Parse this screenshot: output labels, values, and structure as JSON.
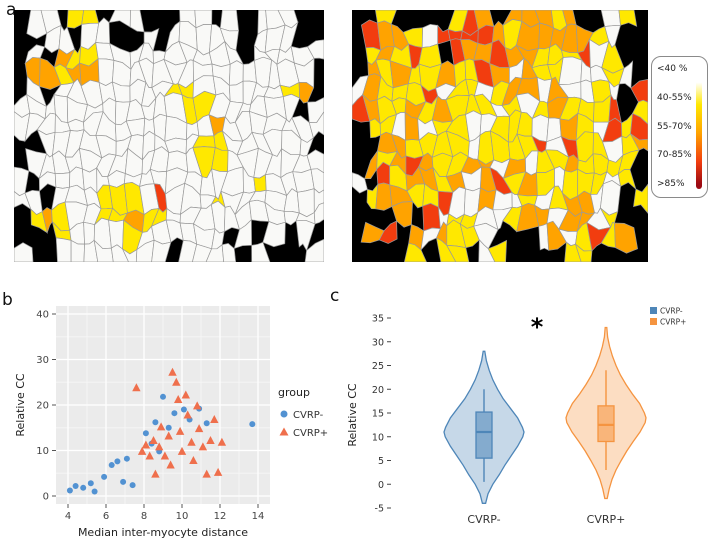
{
  "figure": {
    "panel_labels": {
      "a": "a",
      "b": "b",
      "c": "c"
    }
  },
  "panel_a": {
    "legend": {
      "labels": [
        "<40 %",
        "40-55%",
        "55-70%",
        "70-85%",
        ">85%"
      ],
      "gradient": [
        "#ffffff",
        "#ffe800",
        "#ffa300",
        "#f23d0f",
        "#9c0b13"
      ]
    }
  },
  "chart_data": [
    {
      "type": "heatmap",
      "legend_labels": [
        "<40 %",
        "40-55%",
        "55-70%",
        "70-85%",
        ">85%"
      ],
      "palette": [
        "#f9f9f7",
        "#ffe800",
        "#ffa300",
        "#f23d0f"
      ],
      "maps": [
        {
          "name": "left",
          "seed": 20,
          "cols": 22,
          "rows": 14,
          "jitter": 0.75,
          "hotspots": 9,
          "hotspot_radius": 0.07,
          "base_dist": [
            0.978,
            0.022,
            0,
            0
          ],
          "hot_dist": [
            0.12,
            0.7,
            0.16,
            0.02
          ],
          "edge_black": [
            0.45,
            0.15,
            0.03
          ],
          "corner_black": 0.25
        },
        {
          "name": "right",
          "seed": 77,
          "cols": 21,
          "rows": 14,
          "jitter": 0.75,
          "hotspots": 7,
          "hotspot_radius": 0.1,
          "base_dist": [
            0.33,
            0.45,
            0.17,
            0.05
          ],
          "hot_dist": [
            0.04,
            0.28,
            0.46,
            0.22
          ],
          "edge_black": [
            0.42,
            0.12,
            0.03
          ],
          "corner_black": 0.3
        }
      ]
    },
    {
      "type": "scatter",
      "xlabel": "Median inter-myocyte distance",
      "ylabel": "Relative CC",
      "xlim": [
        4,
        14
      ],
      "ylim": [
        0,
        40
      ],
      "xticks": [
        4,
        6,
        8,
        10,
        12,
        14
      ],
      "yticks": [
        0,
        10,
        20,
        30,
        40
      ],
      "panel_background": "#ebebeb",
      "legend_title": "group",
      "series": [
        {
          "name": "CVRP-",
          "marker": "circle",
          "color": "#5292d2",
          "points": [
            [
              4.1,
              1.2
            ],
            [
              4.4,
              2.2
            ],
            [
              4.8,
              1.8
            ],
            [
              5.2,
              2.8
            ],
            [
              5.4,
              1.0
            ],
            [
              5.9,
              4.2
            ],
            [
              6.3,
              6.8
            ],
            [
              6.6,
              7.6
            ],
            [
              6.9,
              3.1
            ],
            [
              7.1,
              8.2
            ],
            [
              7.4,
              2.4
            ],
            [
              8.1,
              13.8
            ],
            [
              8.4,
              11.5
            ],
            [
              8.6,
              16.2
            ],
            [
              8.8,
              9.8
            ],
            [
              9.0,
              21.8
            ],
            [
              9.3,
              15.0
            ],
            [
              9.6,
              18.2
            ],
            [
              10.1,
              19.0
            ],
            [
              10.4,
              16.8
            ],
            [
              10.9,
              19.2
            ],
            [
              11.3,
              16.0
            ],
            [
              13.7,
              15.8
            ]
          ]
        },
        {
          "name": "CVRP+",
          "marker": "triangle",
          "color": "#ef6f4c",
          "points": [
            [
              7.6,
              23.8
            ],
            [
              7.9,
              9.8
            ],
            [
              8.1,
              11.2
            ],
            [
              8.3,
              8.8
            ],
            [
              8.5,
              12.2
            ],
            [
              8.6,
              4.8
            ],
            [
              8.8,
              10.8
            ],
            [
              8.9,
              15.2
            ],
            [
              9.1,
              8.8
            ],
            [
              9.3,
              13.2
            ],
            [
              9.4,
              6.8
            ],
            [
              9.5,
              27.2
            ],
            [
              9.7,
              25.0
            ],
            [
              9.8,
              21.2
            ],
            [
              9.9,
              14.2
            ],
            [
              10.0,
              9.8
            ],
            [
              10.2,
              22.2
            ],
            [
              10.3,
              17.8
            ],
            [
              10.5,
              11.8
            ],
            [
              10.6,
              7.8
            ],
            [
              10.8,
              19.8
            ],
            [
              10.9,
              14.8
            ],
            [
              11.1,
              10.8
            ],
            [
              11.3,
              4.8
            ],
            [
              11.5,
              12.2
            ],
            [
              11.7,
              16.8
            ],
            [
              11.9,
              5.2
            ],
            [
              12.1,
              11.8
            ]
          ]
        }
      ]
    },
    {
      "type": "violin",
      "ylabel": "Relative CC",
      "ylim": [
        -5,
        35
      ],
      "yticks": [
        -5,
        0,
        5,
        10,
        15,
        20,
        25,
        30,
        35
      ],
      "categories": [
        "CVRP-",
        "CVRP+"
      ],
      "significance": "*",
      "legend": [
        {
          "label": "CVRP-",
          "color": "#4e86b8"
        },
        {
          "label": "CVRP+",
          "color": "#f59440"
        }
      ],
      "groups": [
        {
          "name": "CVRP-",
          "color": "#4e86b8",
          "profile": [
            [
              -4,
              0.04
            ],
            [
              -2,
              0.1
            ],
            [
              0,
              0.22
            ],
            [
              2,
              0.38
            ],
            [
              4,
              0.52
            ],
            [
              6,
              0.68
            ],
            [
              8,
              0.84
            ],
            [
              10,
              0.97
            ],
            [
              11,
              1.0
            ],
            [
              12,
              0.96
            ],
            [
              14,
              0.84
            ],
            [
              16,
              0.66
            ],
            [
              18,
              0.48
            ],
            [
              20,
              0.34
            ],
            [
              22,
              0.22
            ],
            [
              24,
              0.13
            ],
            [
              26,
              0.06
            ],
            [
              28,
              0.02
            ]
          ],
          "box": {
            "q1": 5.5,
            "median": 11,
            "q3": 15.2,
            "whisker_low": 0.5,
            "whisker_high": 20
          }
        },
        {
          "name": "CVRP+",
          "color": "#f59440",
          "profile": [
            [
              -3,
              0.03
            ],
            [
              -1,
              0.08
            ],
            [
              1,
              0.15
            ],
            [
              3,
              0.25
            ],
            [
              5,
              0.38
            ],
            [
              7,
              0.52
            ],
            [
              9,
              0.68
            ],
            [
              11,
              0.85
            ],
            [
              13,
              0.98
            ],
            [
              14,
              1.0
            ],
            [
              15,
              0.96
            ],
            [
              17,
              0.84
            ],
            [
              19,
              0.66
            ],
            [
              21,
              0.5
            ],
            [
              23,
              0.36
            ],
            [
              25,
              0.25
            ],
            [
              27,
              0.16
            ],
            [
              29,
              0.09
            ],
            [
              31,
              0.04
            ],
            [
              33,
              0.02
            ]
          ],
          "box": {
            "q1": 9,
            "median": 12.5,
            "q3": 16.5,
            "whisker_low": 3,
            "whisker_high": 24
          }
        }
      ]
    }
  ]
}
